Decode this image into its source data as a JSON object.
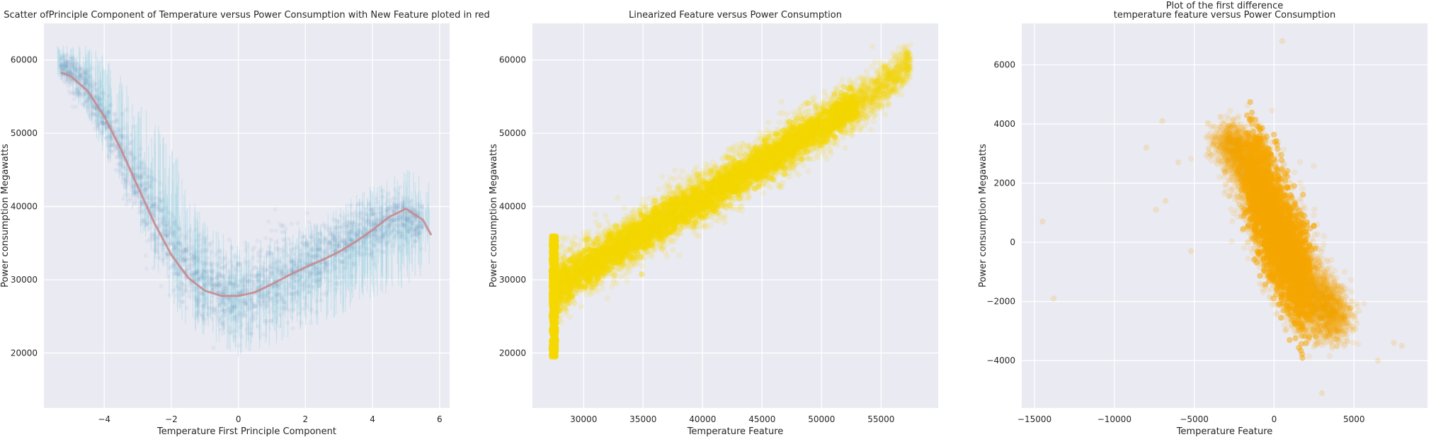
{
  "chart_data": [
    {
      "type": "scatter",
      "title": "Scatter ofPrinciple Component of Temperature versus Power Consumption with New Feature ploted in red",
      "xlabel": "Temperature First Principle Component",
      "ylabel": "Power consumption Megawatts",
      "xlim": [
        -5.8,
        6.3
      ],
      "ylim": [
        12500,
        65000
      ],
      "xticks": [
        -4,
        -2,
        0,
        2,
        4,
        6
      ],
      "xtick_labels": [
        "−4",
        "−2",
        "0",
        "2",
        "4",
        "6"
      ],
      "yticks": [
        20000,
        30000,
        40000,
        50000,
        60000
      ],
      "ytick_labels": [
        "20000",
        "30000",
        "40000",
        "50000",
        "60000"
      ],
      "grid": true,
      "scatter_color": "#4c72b0",
      "band_color": "#add8e6",
      "series": [
        {
          "kind": "band",
          "x": [
            -5.4,
            -4.5,
            -4.0,
            -3.0,
            -2.0,
            -1.5,
            -1.0,
            0.0,
            1.0,
            2.0,
            3.0,
            4.0,
            5.0,
            5.7
          ],
          "low": [
            58000,
            52000,
            47000,
            37000,
            26000,
            23500,
            21500,
            19500,
            21000,
            23000,
            25000,
            27500,
            29000,
            31000
          ],
          "high": [
            62000,
            62000,
            61000,
            55000,
            49000,
            43000,
            38000,
            35000,
            36000,
            38000,
            40000,
            43000,
            45000,
            45500
          ]
        },
        {
          "kind": "cluster",
          "x": [
            -5.3,
            -4.5,
            -4.0,
            -3.5,
            -3.0,
            -2.5,
            -2.0,
            -1.5,
            -1.0,
            -0.5,
            0.0,
            0.5,
            1.0,
            1.5,
            2.0,
            2.5,
            3.0,
            3.5,
            4.0,
            4.5,
            5.0,
            5.5
          ],
          "center": [
            59500,
            56000,
            52000,
            47500,
            43000,
            38000,
            34000,
            31500,
            29500,
            28500,
            28000,
            28500,
            29500,
            31000,
            32000,
            33000,
            34500,
            36000,
            37000,
            38000,
            38500,
            37000
          ],
          "spread": [
            1800,
            3000,
            3500,
            4000,
            4500,
            5000,
            5000,
            5000,
            5000,
            5000,
            5000,
            5000,
            5000,
            5000,
            4500,
            4500,
            4000,
            3500,
            3500,
            3000,
            3000,
            2500
          ]
        },
        {
          "kind": "line",
          "name": "New Feature",
          "color": "#c88a8f",
          "x": [
            -5.3,
            -5.0,
            -4.5,
            -4.0,
            -3.5,
            -3.0,
            -2.5,
            -2.0,
            -1.5,
            -1.0,
            -0.5,
            0.0,
            0.5,
            1.0,
            1.5,
            2.0,
            2.5,
            3.0,
            3.5,
            4.0,
            4.5,
            5.0,
            5.5,
            5.75
          ],
          "y": [
            58300,
            57800,
            55800,
            52300,
            47800,
            42700,
            37700,
            33400,
            30300,
            28500,
            27800,
            27800,
            28300,
            29400,
            30600,
            31700,
            32700,
            33800,
            35200,
            36800,
            38600,
            39700,
            38200,
            36100
          ]
        }
      ]
    },
    {
      "type": "scatter",
      "title": "Linearized Feature versus Power Consumption",
      "xlabel": "Temperature Feature",
      "ylabel": "Power consumption Megawatts",
      "xlim": [
        25700,
        59800
      ],
      "ylim": [
        12500,
        65000
      ],
      "xticks": [
        30000,
        35000,
        40000,
        45000,
        50000,
        55000
      ],
      "xtick_labels": [
        "30000",
        "35000",
        "40000",
        "45000",
        "50000",
        "55000"
      ],
      "yticks": [
        20000,
        30000,
        40000,
        50000,
        60000
      ],
      "ytick_labels": [
        "20000",
        "30000",
        "40000",
        "50000",
        "60000"
      ],
      "grid": true,
      "color": "#f5d800",
      "series": [
        {
          "kind": "cluster",
          "x": [
            27300,
            28000,
            29000,
            30000,
            32000,
            34000,
            36000,
            38000,
            40000,
            42000,
            44000,
            46000,
            48000,
            50000,
            52000,
            54000,
            56000,
            57500
          ],
          "center": [
            28000,
            29000,
            30500,
            31500,
            33500,
            35500,
            37500,
            39500,
            41000,
            43000,
            45000,
            47000,
            49000,
            51000,
            53000,
            55000,
            57500,
            60000
          ],
          "spread": [
            4200,
            4000,
            3800,
            3600,
            3500,
            3400,
            3300,
            3300,
            3300,
            3300,
            3200,
            3200,
            3200,
            3100,
            3000,
            2800,
            2500,
            2000
          ]
        }
      ]
    },
    {
      "type": "scatter",
      "title": "Plot of the first difference\ntemperature feature versus Power Consumption",
      "xlabel": "Temperature Feature",
      "ylabel": "Power consumption Megawatts",
      "xlim": [
        -15800,
        9600
      ],
      "ylim": [
        -5600,
        7400
      ],
      "xticks": [
        -15000,
        -10000,
        -5000,
        0,
        5000
      ],
      "xtick_labels": [
        "−15000",
        "−10000",
        "−5000",
        "0",
        "5000"
      ],
      "yticks": [
        -4000,
        -2000,
        0,
        2000,
        4000,
        6000
      ],
      "ytick_labels": [
        "−4000",
        "−2000",
        "0",
        "2000",
        "4000",
        "6000"
      ],
      "grid": true,
      "color": "#f5a500",
      "series": [
        {
          "kind": "cluster",
          "x": [
            -3000,
            -2500,
            -2000,
            -1500,
            -1000,
            -500,
            0,
            500,
            1000,
            1500,
            2000,
            2500,
            3000,
            3500,
            4000
          ],
          "center": [
            3500,
            3200,
            2800,
            2300,
            1800,
            1200,
            600,
            0,
            -500,
            -1000,
            -1500,
            -1800,
            -2100,
            -2400,
            -2600
          ],
          "spread": [
            500,
            700,
            900,
            1200,
            1500,
            1700,
            1800,
            1700,
            1500,
            1300,
            1200,
            1100,
            1000,
            900,
            800
          ]
        }
      ]
    }
  ]
}
